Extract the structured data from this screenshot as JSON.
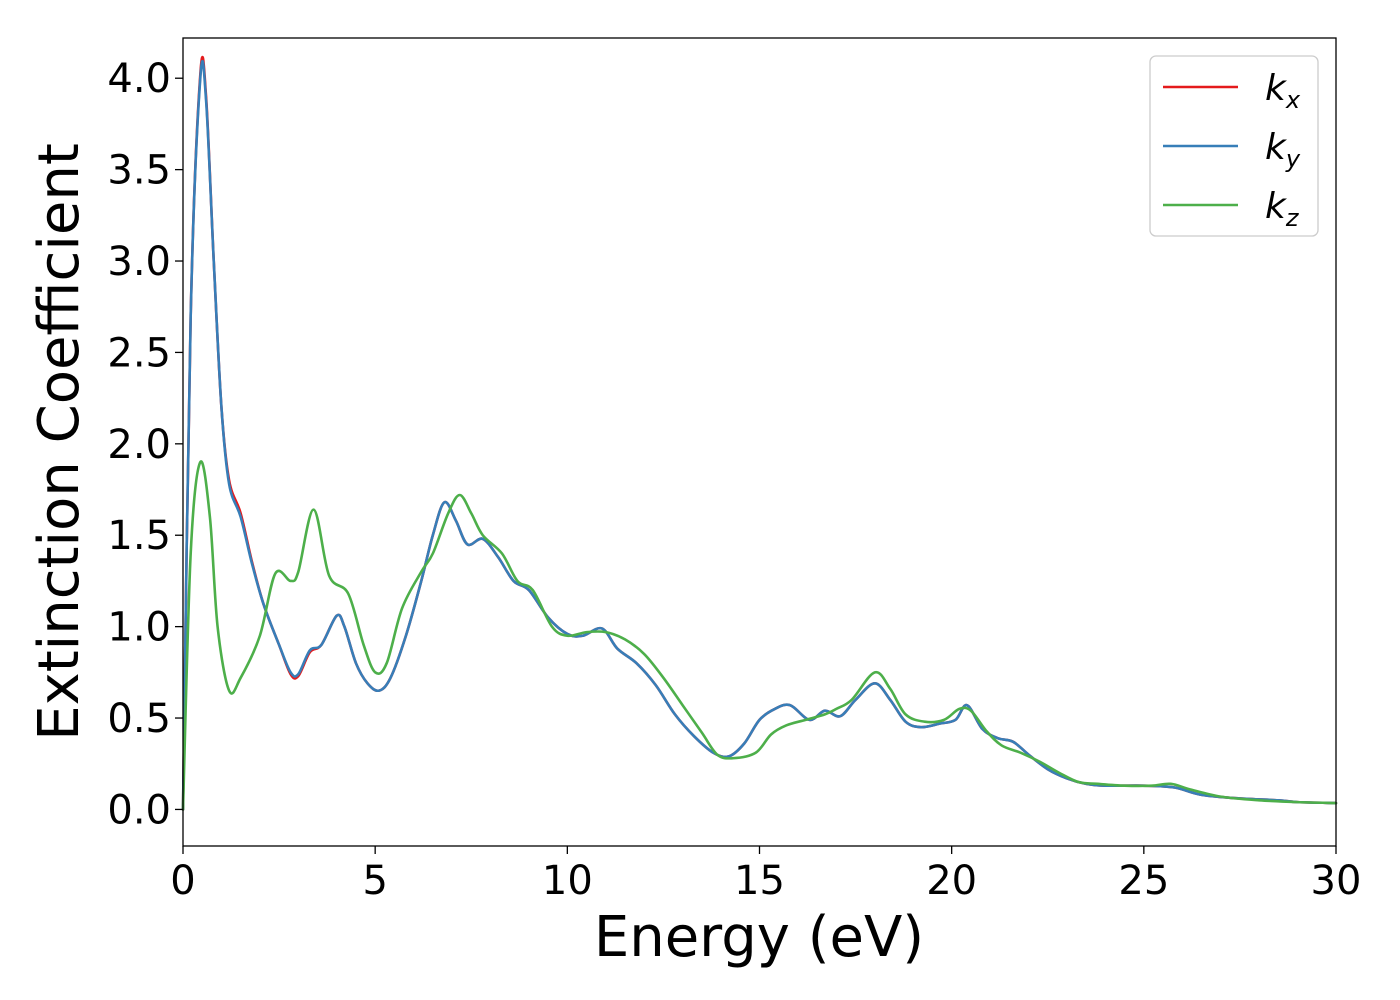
{
  "chart_data": {
    "type": "line",
    "title": "",
    "xlabel": "Energy (eV)",
    "ylabel": "Extinction Coefficient",
    "xlim": [
      0,
      30
    ],
    "ylim": [
      -0.2,
      4.22
    ],
    "xticks": [
      0,
      5,
      10,
      15,
      20,
      25,
      30
    ],
    "xtick_labels": [
      "0",
      "5",
      "10",
      "15",
      "20",
      "25",
      "30"
    ],
    "yticks": [
      0.0,
      0.5,
      1.0,
      1.5,
      2.0,
      2.5,
      3.0,
      3.5,
      4.0
    ],
    "ytick_labels": [
      "0.0",
      "0.5",
      "1.0",
      "1.5",
      "2.0",
      "2.5",
      "3.0",
      "3.5",
      "4.0"
    ],
    "grid": false,
    "legend_position": "top-right",
    "series": [
      {
        "name": "k_x",
        "label_main": "k",
        "label_sub": "x",
        "color": "#e41a1c",
        "points": [
          [
            0,
            0
          ],
          [
            0.2,
            2.7
          ],
          [
            0.45,
            4.02
          ],
          [
            0.6,
            3.9
          ],
          [
            0.8,
            3.0
          ],
          [
            1.0,
            2.2
          ],
          [
            1.2,
            1.8
          ],
          [
            1.5,
            1.62
          ],
          [
            1.8,
            1.35
          ],
          [
            2.1,
            1.12
          ],
          [
            2.5,
            0.9
          ],
          [
            2.8,
            0.74
          ],
          [
            3.0,
            0.73
          ],
          [
            3.3,
            0.86
          ],
          [
            3.6,
            0.9
          ],
          [
            4.0,
            1.06
          ],
          [
            4.2,
            1.0
          ],
          [
            4.5,
            0.8
          ],
          [
            4.8,
            0.69
          ],
          [
            5.1,
            0.65
          ],
          [
            5.4,
            0.72
          ],
          [
            5.8,
            0.95
          ],
          [
            6.2,
            1.25
          ],
          [
            6.5,
            1.5
          ],
          [
            6.8,
            1.68
          ],
          [
            7.1,
            1.58
          ],
          [
            7.4,
            1.45
          ],
          [
            7.8,
            1.48
          ],
          [
            8.2,
            1.38
          ],
          [
            8.6,
            1.25
          ],
          [
            9.0,
            1.2
          ],
          [
            9.5,
            1.05
          ],
          [
            10.0,
            0.96
          ],
          [
            10.4,
            0.95
          ],
          [
            10.9,
            0.99
          ],
          [
            11.3,
            0.88
          ],
          [
            11.8,
            0.8
          ],
          [
            12.3,
            0.68
          ],
          [
            12.8,
            0.52
          ],
          [
            13.3,
            0.4
          ],
          [
            13.8,
            0.31
          ],
          [
            14.2,
            0.29
          ],
          [
            14.6,
            0.36
          ],
          [
            15.0,
            0.49
          ],
          [
            15.4,
            0.55
          ],
          [
            15.8,
            0.57
          ],
          [
            16.3,
            0.49
          ],
          [
            16.7,
            0.54
          ],
          [
            17.1,
            0.51
          ],
          [
            17.5,
            0.6
          ],
          [
            18.0,
            0.69
          ],
          [
            18.4,
            0.6
          ],
          [
            18.8,
            0.48
          ],
          [
            19.2,
            0.45
          ],
          [
            19.7,
            0.47
          ],
          [
            20.1,
            0.49
          ],
          [
            20.4,
            0.57
          ],
          [
            20.8,
            0.44
          ],
          [
            21.2,
            0.39
          ],
          [
            21.6,
            0.37
          ],
          [
            22.0,
            0.3
          ],
          [
            22.5,
            0.22
          ],
          [
            23.0,
            0.17
          ],
          [
            23.5,
            0.14
          ],
          [
            24.0,
            0.13
          ],
          [
            25.0,
            0.13
          ],
          [
            25.8,
            0.12
          ],
          [
            26.5,
            0.08
          ],
          [
            27.5,
            0.06
          ],
          [
            28.5,
            0.05
          ],
          [
            29.0,
            0.04
          ],
          [
            30.0,
            0.035
          ]
        ]
      },
      {
        "name": "k_y",
        "label_main": "k",
        "label_sub": "y",
        "color": "#377eb8",
        "points": [
          [
            0,
            0
          ],
          [
            0.2,
            2.7
          ],
          [
            0.45,
            4.0
          ],
          [
            0.6,
            3.88
          ],
          [
            0.8,
            3.0
          ],
          [
            1.0,
            2.2
          ],
          [
            1.2,
            1.78
          ],
          [
            1.5,
            1.6
          ],
          [
            1.8,
            1.34
          ],
          [
            2.1,
            1.12
          ],
          [
            2.5,
            0.9
          ],
          [
            2.8,
            0.75
          ],
          [
            3.0,
            0.74
          ],
          [
            3.3,
            0.87
          ],
          [
            3.6,
            0.9
          ],
          [
            4.0,
            1.06
          ],
          [
            4.2,
            1.0
          ],
          [
            4.5,
            0.8
          ],
          [
            4.8,
            0.69
          ],
          [
            5.1,
            0.65
          ],
          [
            5.4,
            0.72
          ],
          [
            5.8,
            0.95
          ],
          [
            6.2,
            1.25
          ],
          [
            6.5,
            1.5
          ],
          [
            6.8,
            1.68
          ],
          [
            7.1,
            1.58
          ],
          [
            7.4,
            1.45
          ],
          [
            7.8,
            1.48
          ],
          [
            8.2,
            1.38
          ],
          [
            8.6,
            1.25
          ],
          [
            9.0,
            1.2
          ],
          [
            9.5,
            1.05
          ],
          [
            10.0,
            0.96
          ],
          [
            10.4,
            0.95
          ],
          [
            10.9,
            0.99
          ],
          [
            11.3,
            0.88
          ],
          [
            11.8,
            0.8
          ],
          [
            12.3,
            0.68
          ],
          [
            12.8,
            0.52
          ],
          [
            13.3,
            0.4
          ],
          [
            13.8,
            0.31
          ],
          [
            14.2,
            0.29
          ],
          [
            14.6,
            0.36
          ],
          [
            15.0,
            0.49
          ],
          [
            15.4,
            0.55
          ],
          [
            15.8,
            0.57
          ],
          [
            16.3,
            0.49
          ],
          [
            16.7,
            0.54
          ],
          [
            17.1,
            0.51
          ],
          [
            17.5,
            0.6
          ],
          [
            18.0,
            0.69
          ],
          [
            18.4,
            0.6
          ],
          [
            18.8,
            0.48
          ],
          [
            19.2,
            0.45
          ],
          [
            19.7,
            0.47
          ],
          [
            20.1,
            0.49
          ],
          [
            20.4,
            0.57
          ],
          [
            20.8,
            0.44
          ],
          [
            21.2,
            0.39
          ],
          [
            21.6,
            0.37
          ],
          [
            22.0,
            0.3
          ],
          [
            22.5,
            0.22
          ],
          [
            23.0,
            0.17
          ],
          [
            23.5,
            0.14
          ],
          [
            24.0,
            0.13
          ],
          [
            25.0,
            0.13
          ],
          [
            25.8,
            0.12
          ],
          [
            26.5,
            0.08
          ],
          [
            27.5,
            0.06
          ],
          [
            28.5,
            0.05
          ],
          [
            29.0,
            0.04
          ],
          [
            30.0,
            0.035
          ]
        ]
      },
      {
        "name": "k_z",
        "label_main": "k",
        "label_sub": "z",
        "color": "#4daf4a",
        "points": [
          [
            0,
            0
          ],
          [
            0.2,
            1.4
          ],
          [
            0.45,
            1.9
          ],
          [
            0.7,
            1.6
          ],
          [
            0.9,
            1.0
          ],
          [
            1.2,
            0.65
          ],
          [
            1.5,
            0.72
          ],
          [
            2.0,
            0.95
          ],
          [
            2.4,
            1.29
          ],
          [
            2.8,
            1.25
          ],
          [
            3.0,
            1.3
          ],
          [
            3.4,
            1.64
          ],
          [
            3.8,
            1.28
          ],
          [
            4.3,
            1.18
          ],
          [
            4.7,
            0.9
          ],
          [
            5.0,
            0.75
          ],
          [
            5.3,
            0.8
          ],
          [
            5.7,
            1.1
          ],
          [
            6.2,
            1.3
          ],
          [
            6.5,
            1.4
          ],
          [
            6.9,
            1.62
          ],
          [
            7.2,
            1.72
          ],
          [
            7.5,
            1.62
          ],
          [
            7.8,
            1.5
          ],
          [
            8.3,
            1.4
          ],
          [
            8.7,
            1.25
          ],
          [
            9.1,
            1.2
          ],
          [
            9.6,
            1.0
          ],
          [
            10.0,
            0.95
          ],
          [
            10.5,
            0.97
          ],
          [
            11.0,
            0.97
          ],
          [
            11.5,
            0.93
          ],
          [
            12.0,
            0.85
          ],
          [
            12.5,
            0.72
          ],
          [
            13.0,
            0.57
          ],
          [
            13.5,
            0.42
          ],
          [
            13.9,
            0.3
          ],
          [
            14.3,
            0.28
          ],
          [
            14.9,
            0.31
          ],
          [
            15.3,
            0.41
          ],
          [
            15.7,
            0.46
          ],
          [
            16.2,
            0.49
          ],
          [
            16.7,
            0.52
          ],
          [
            17.0,
            0.55
          ],
          [
            17.4,
            0.6
          ],
          [
            18.0,
            0.75
          ],
          [
            18.4,
            0.66
          ],
          [
            18.8,
            0.52
          ],
          [
            19.3,
            0.48
          ],
          [
            19.8,
            0.49
          ],
          [
            20.2,
            0.55
          ],
          [
            20.5,
            0.54
          ],
          [
            20.9,
            0.43
          ],
          [
            21.3,
            0.35
          ],
          [
            21.8,
            0.31
          ],
          [
            22.3,
            0.26
          ],
          [
            22.8,
            0.2
          ],
          [
            23.3,
            0.15
          ],
          [
            23.8,
            0.14
          ],
          [
            24.5,
            0.13
          ],
          [
            25.2,
            0.13
          ],
          [
            25.7,
            0.14
          ],
          [
            26.2,
            0.11
          ],
          [
            27.0,
            0.07
          ],
          [
            28.0,
            0.05
          ],
          [
            29.0,
            0.04
          ],
          [
            30.0,
            0.035
          ]
        ]
      }
    ]
  }
}
